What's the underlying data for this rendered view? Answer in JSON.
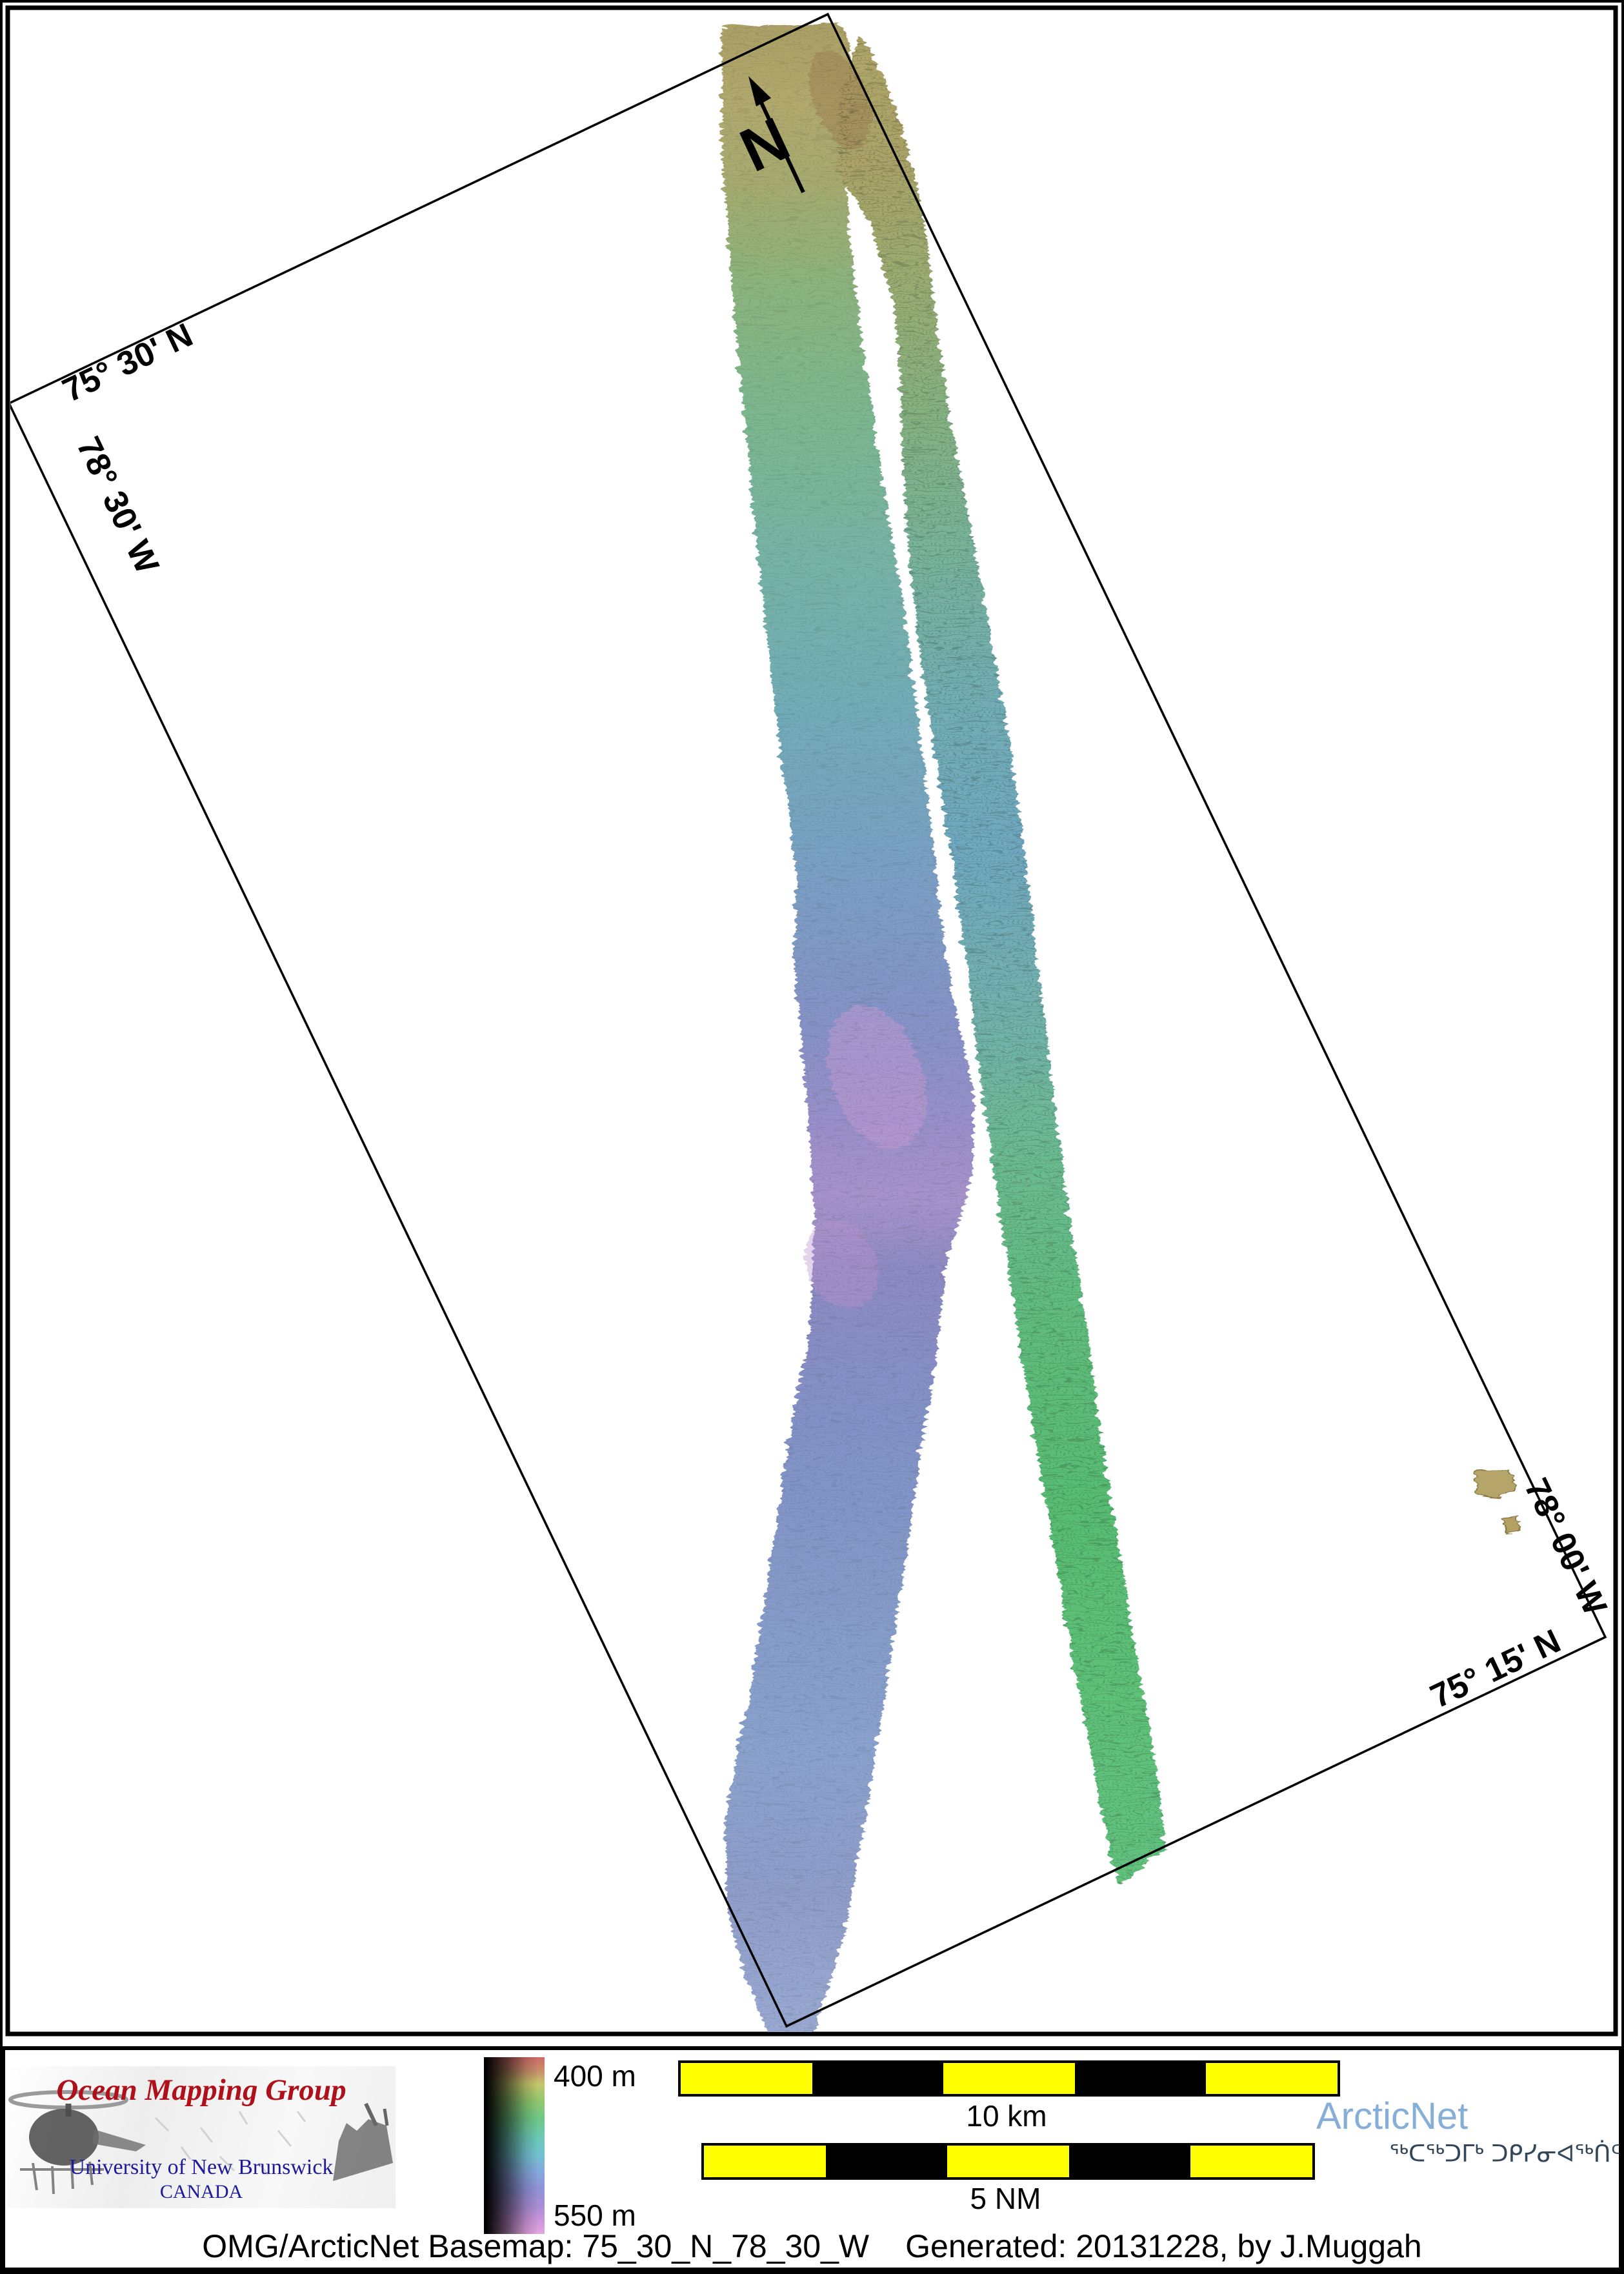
{
  "theme": {
    "omg_red": "#b01019",
    "unb_blue": "#1d1a9e",
    "arcticnet_blue": "#85aed8",
    "inuktitut_navy": "#33475a",
    "scalebar_yellow": "#ffff00",
    "frame_color": "#000000"
  },
  "map": {
    "frame_labels": {
      "lat_top": "75° 30' N",
      "lon_left": "78° 30' W",
      "lon_right": "78° 00' W",
      "lat_bottom": "75° 15' N"
    },
    "north_label": "N",
    "depth_scale": {
      "top": "400 m",
      "bottom": "550 m"
    },
    "swath_colors": {
      "shallow_tan": "#b2a96e",
      "green": "#8cb47d",
      "teal": "#72acb7",
      "blue": "#7aa0c4",
      "purple": "#9a8fca",
      "deep_steel": "#9aa9d2"
    }
  },
  "footer": {
    "omg": {
      "title": "Ocean Mapping Group",
      "line1": "University of New Brunswick",
      "line2": "CANADA"
    },
    "depth_labels": {
      "top": "400 m",
      "bottom": "550 m"
    },
    "scalebars": {
      "km_label": "10 km",
      "nm_label": "5 NM",
      "pattern": [
        "#ffff00",
        "#000000",
        "#ffff00",
        "#000000",
        "#ffff00"
      ]
    },
    "arcticnet": {
      "name": "ArcticNet",
      "inuktitut": "ᖅᑕᖅᑐᒥᒃ ᑐᑭᓯᓂᐊᖅᑏᑦ"
    },
    "caption_basemap": "OMG/ArcticNet Basemap: 75_30_N_78_30_W",
    "caption_generated": "Generated: 20131228, by J.Muggah"
  }
}
